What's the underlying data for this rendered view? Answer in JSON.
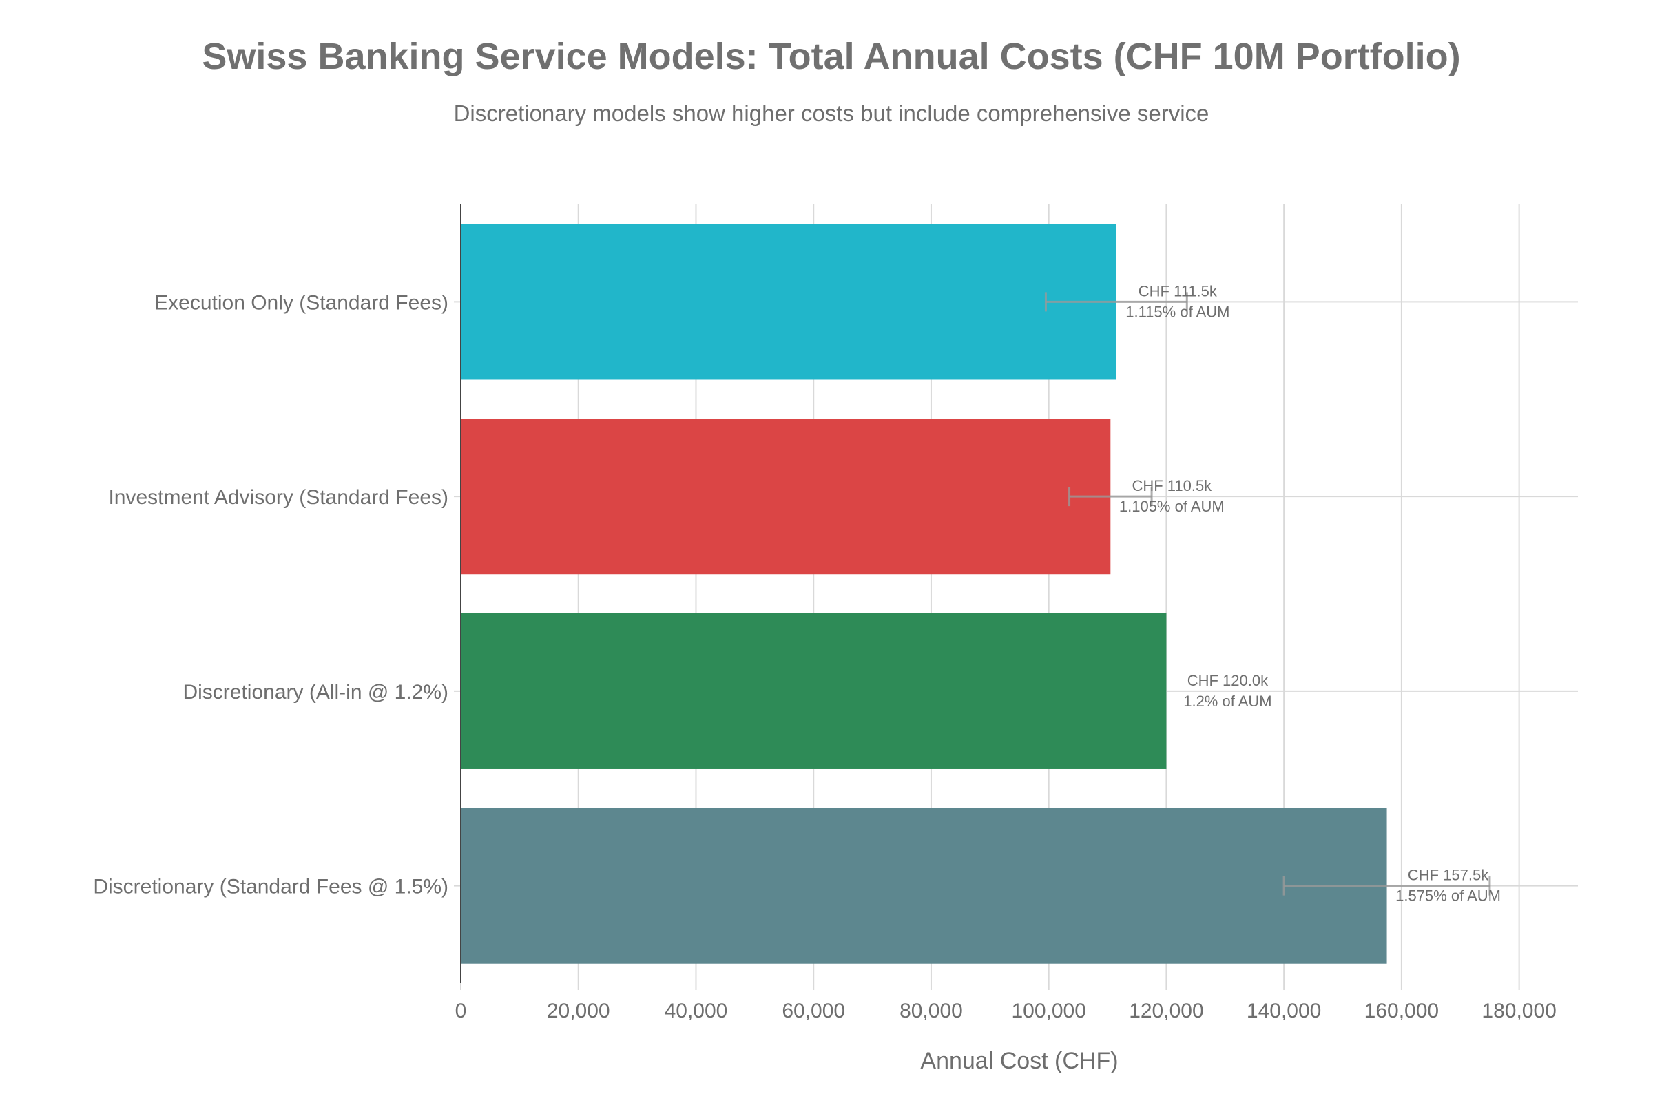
{
  "chart_data": {
    "type": "bar",
    "orientation": "horizontal",
    "title": "Swiss Banking Service Models: Total Annual Costs (CHF 10M Portfolio)",
    "subtitle": "Discretionary models show higher costs but include comprehensive service",
    "xlabel": "Annual Cost (CHF)",
    "ylabel": "",
    "xlim": [
      0,
      190000
    ],
    "xticks": [
      0,
      20000,
      40000,
      60000,
      80000,
      100000,
      120000,
      140000,
      160000,
      180000
    ],
    "xtick_labels": [
      "0",
      "20,000",
      "40,000",
      "60,000",
      "80,000",
      "100,000",
      "120,000",
      "140,000",
      "160,000",
      "180,000"
    ],
    "grid": true,
    "categories": [
      "Execution Only (Standard Fees)",
      "Investment Advisory (Standard Fees)",
      "Discretionary (All-in @ 1.2%)",
      "Discretionary (Standard Fees @ 1.5%)"
    ],
    "values": [
      111500,
      110500,
      120000,
      157500
    ],
    "error": [
      12000,
      7000,
      0,
      17500
    ],
    "colors": [
      "#21B6CA",
      "#DB4545",
      "#2E8B57",
      "#5D878F"
    ],
    "data_labels": [
      [
        "CHF 111.5k",
        "1.115% of AUM"
      ],
      [
        "CHF 110.5k",
        "1.105% of AUM"
      ],
      [
        "CHF 120.0k",
        "1.2% of AUM"
      ],
      [
        "CHF 157.5k",
        "1.575% of AUM"
      ]
    ]
  }
}
